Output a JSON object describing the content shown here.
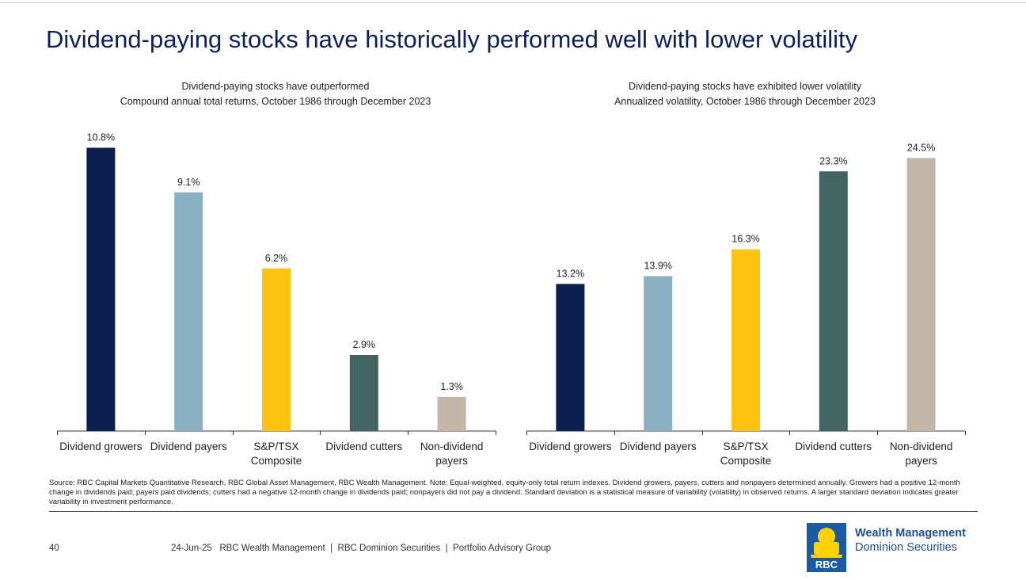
{
  "page": {
    "title": "Dividend-paying stocks have historically performed well with lower volatility"
  },
  "chart_data": [
    {
      "type": "bar",
      "title": "Dividend-paying stocks have outperformed",
      "subtitle": "Compound annual total returns, October 1986 through December 2023",
      "categories": [
        [
          "Dividend growers"
        ],
        [
          "Dividend payers"
        ],
        [
          "S&P/TSX",
          "Composite"
        ],
        [
          "Dividend cutters"
        ],
        [
          "Non-dividend",
          "payers"
        ]
      ],
      "values": [
        10.8,
        9.1,
        6.2,
        2.9,
        1.3
      ],
      "value_labels": [
        "10.8%",
        "9.1%",
        "6.2%",
        "2.9%",
        "1.3%"
      ],
      "colors": [
        "#0a1f4d",
        "#8aafc0",
        "#ffc20e",
        "#426563",
        "#c2b6a6"
      ],
      "ylim": [
        0,
        11.6
      ],
      "xlabel": "",
      "ylabel": "",
      "grid": false
    },
    {
      "type": "bar",
      "title": "Dividend-paying stocks have exhibited lower volatility",
      "subtitle": "Annualized volatility, October 1986 through December 2023",
      "categories": [
        [
          "Dividend growers"
        ],
        [
          "Dividend payers"
        ],
        [
          "S&P/TSX",
          "Composite"
        ],
        [
          "Dividend cutters"
        ],
        [
          "Non-dividend",
          "payers"
        ]
      ],
      "values": [
        13.2,
        13.9,
        16.3,
        23.3,
        24.5
      ],
      "value_labels": [
        "13.2%",
        "13.9%",
        "16.3%",
        "23.3%",
        "24.5%"
      ],
      "colors": [
        "#0a1f4d",
        "#8aafc0",
        "#ffc20e",
        "#426563",
        "#c2b6a6"
      ],
      "ylim": [
        0,
        27.3
      ],
      "xlabel": "",
      "ylabel": "",
      "grid": false
    }
  ],
  "note": {
    "text": "Source: RBC Capital Markets Quantitative Research, RBC Global Asset Management, RBC Wealth Management. Note: Equal-weighted, equity-only total return indexes. Dividend growers, payers, cutters and nonpayers determined annually. Growers had a positive 12-month change in dividends paid; payers paid dividends; cutters had a negative 12-month change in dividends paid; nonpayers did not pay a dividend. Standard deviation is a statistical measure of variability (volatility) in observed returns. A larger standard deviation indicates greater variability in investment performance."
  },
  "footer": {
    "page_number": "40",
    "text": "24-Jun-25   RBC Wealth Management  |  RBC Dominion Securities  |  Portfolio Advisory Group"
  },
  "brand": {
    "line1": "Wealth Management",
    "line2": "Dominion Securities",
    "logo_text": "RBC"
  },
  "colors": {
    "title": "#0a1f5c",
    "brand_blue": "#1f4e9a",
    "logo_blue": "#1d5aa6",
    "logo_yellow": "#ffd200"
  }
}
